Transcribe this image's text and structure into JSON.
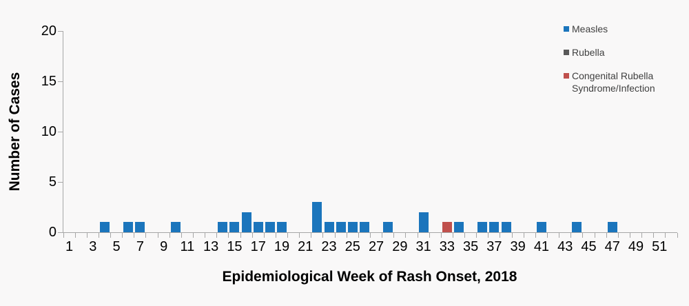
{
  "figure": {
    "background_color": "#f9f8f8",
    "axis_line_color": "#a6a6a6"
  },
  "legend": {
    "position": "top-right",
    "items": [
      {
        "label": "Measles",
        "color": "#1b75bc"
      },
      {
        "label": "Rubella",
        "color": "#595959"
      },
      {
        "label": "Congenital Rubella Syndrome/Infection",
        "color": "#c0504d"
      }
    ]
  },
  "chart_data": {
    "type": "bar",
    "title": "",
    "xlabel": "Epidemiological Week of Rash Onset, 2018",
    "ylabel": "Number of Cases",
    "x_axis": {
      "min_week": 1,
      "max_week": 52,
      "tick_labels": [
        1,
        3,
        5,
        7,
        9,
        11,
        13,
        15,
        17,
        19,
        21,
        23,
        25,
        27,
        29,
        31,
        33,
        35,
        37,
        39,
        41,
        43,
        45,
        47,
        49,
        51
      ]
    },
    "ylim": [
      0,
      20
    ],
    "yticks": [
      0,
      5,
      10,
      15,
      20
    ],
    "grid": false,
    "legend_position": "top-right",
    "series": [
      {
        "name": "Measles",
        "color": "#1b75bc",
        "points": [
          {
            "week": 4,
            "cases": 1
          },
          {
            "week": 6,
            "cases": 1
          },
          {
            "week": 7,
            "cases": 1
          },
          {
            "week": 10,
            "cases": 1
          },
          {
            "week": 14,
            "cases": 1
          },
          {
            "week": 15,
            "cases": 1
          },
          {
            "week": 16,
            "cases": 2
          },
          {
            "week": 17,
            "cases": 1
          },
          {
            "week": 18,
            "cases": 1
          },
          {
            "week": 19,
            "cases": 1
          },
          {
            "week": 22,
            "cases": 3
          },
          {
            "week": 23,
            "cases": 1
          },
          {
            "week": 24,
            "cases": 1
          },
          {
            "week": 25,
            "cases": 1
          },
          {
            "week": 26,
            "cases": 1
          },
          {
            "week": 28,
            "cases": 1
          },
          {
            "week": 31,
            "cases": 2
          },
          {
            "week": 34,
            "cases": 1
          },
          {
            "week": 36,
            "cases": 1
          },
          {
            "week": 37,
            "cases": 1
          },
          {
            "week": 38,
            "cases": 1
          },
          {
            "week": 41,
            "cases": 1
          },
          {
            "week": 44,
            "cases": 1
          },
          {
            "week": 47,
            "cases": 1
          }
        ]
      },
      {
        "name": "Rubella",
        "color": "#595959",
        "points": []
      },
      {
        "name": "Congenital Rubella Syndrome/Infection",
        "color": "#c0504d",
        "points": [
          {
            "week": 33,
            "cases": 1
          }
        ]
      }
    ]
  }
}
